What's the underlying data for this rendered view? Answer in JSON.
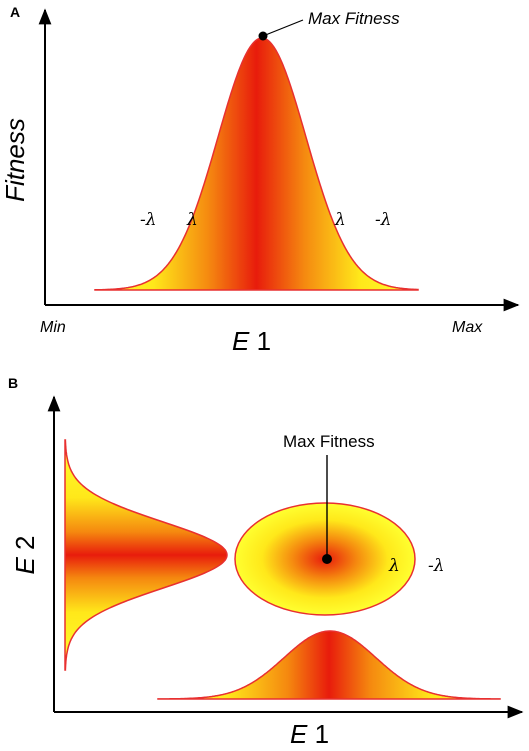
{
  "panel_a": {
    "label": "A",
    "y_axis_title": "Fitness",
    "x_axis_title_italic": "E",
    "x_axis_title_num": " 1",
    "x_min_label": "Min",
    "x_max_label": "Max",
    "peak_label": "Max Fitness",
    "lambda_inner_left": "λ",
    "lambda_outer_left": "-λ",
    "lambda_inner_right": "λ",
    "lambda_outer_right": "-λ"
  },
  "panel_b": {
    "label": "B",
    "y_axis_title_italic": "E",
    "y_axis_title_num": " 2",
    "x_axis_title_italic": "E",
    "x_axis_title_num": " 1",
    "peak_label": "Max Fitness",
    "lambda_inner": "λ",
    "lambda_outer": "-λ"
  },
  "colors": {
    "center": "#e8200f",
    "mid": "#f48a0e",
    "edge": "#ffff2a",
    "outline": "#e83030",
    "axis": "#000000"
  }
}
